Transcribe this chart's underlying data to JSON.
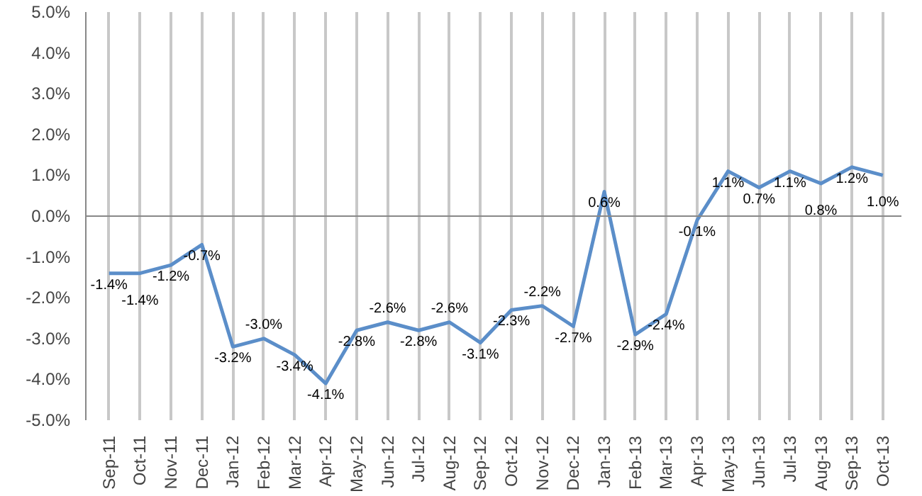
{
  "chart_data": {
    "type": "line",
    "categories": [
      "Sep-11",
      "Oct-11",
      "Nov-11",
      "Dec-11",
      "Jan-12",
      "Feb-12",
      "Mar-12",
      "Apr-12",
      "May-12",
      "Jun-12",
      "Jul-12",
      "Aug-12",
      "Sep-12",
      "Oct-12",
      "Nov-12",
      "Dec-12",
      "Jan-13",
      "Feb-13",
      "Mar-13",
      "Apr-13",
      "May-13",
      "Jun-13",
      "Jul-13",
      "Aug-13",
      "Sep-13",
      "Oct-13"
    ],
    "series": [
      {
        "color": "#5b8ec9",
        "values": [
          -1.4,
          -1.4,
          -1.2,
          -0.7,
          -3.2,
          -3.0,
          -3.4,
          -4.1,
          -2.8,
          -2.6,
          -2.8,
          -2.6,
          -3.1,
          -2.3,
          -2.2,
          -2.7,
          0.6,
          -2.9,
          -2.4,
          -0.1,
          1.1,
          0.7,
          1.1,
          0.8,
          1.2,
          1.0
        ],
        "value_labels": [
          "-1.4%",
          "-1.4%",
          "-1.2%",
          "-0.7%",
          "-3.2%",
          "-3.0%",
          "-3.4%",
          "-4.1%",
          "-2.8%",
          "-2.6%",
          "-2.8%",
          "-2.6%",
          "-3.1%",
          "-2.3%",
          "-2.2%",
          "-2.7%",
          "0.6%",
          "-2.9%",
          "-2.4%",
          "-0.1%",
          "1.1%",
          "0.7%",
          "1.1%",
          "0.8%",
          "1.2%",
          "1.0%"
        ]
      }
    ],
    "ylim": [
      -5,
      5
    ],
    "yticks": [
      {
        "value": -5,
        "label": "-5.0%"
      },
      {
        "value": -4,
        "label": "-4.0%"
      },
      {
        "value": -3,
        "label": "-3.0%"
      },
      {
        "value": -2,
        "label": "-2.0%"
      },
      {
        "value": -1,
        "label": "-1.0%"
      },
      {
        "value": 0,
        "label": "0.0%"
      },
      {
        "value": 1,
        "label": "1.0%"
      },
      {
        "value": 2,
        "label": "2.0%"
      },
      {
        "value": 3,
        "label": "3.0%"
      },
      {
        "value": 4,
        "label": "4.0%"
      },
      {
        "value": 5,
        "label": "5.0%"
      }
    ],
    "grid": "x",
    "marker": "none",
    "line_style": "solid"
  }
}
